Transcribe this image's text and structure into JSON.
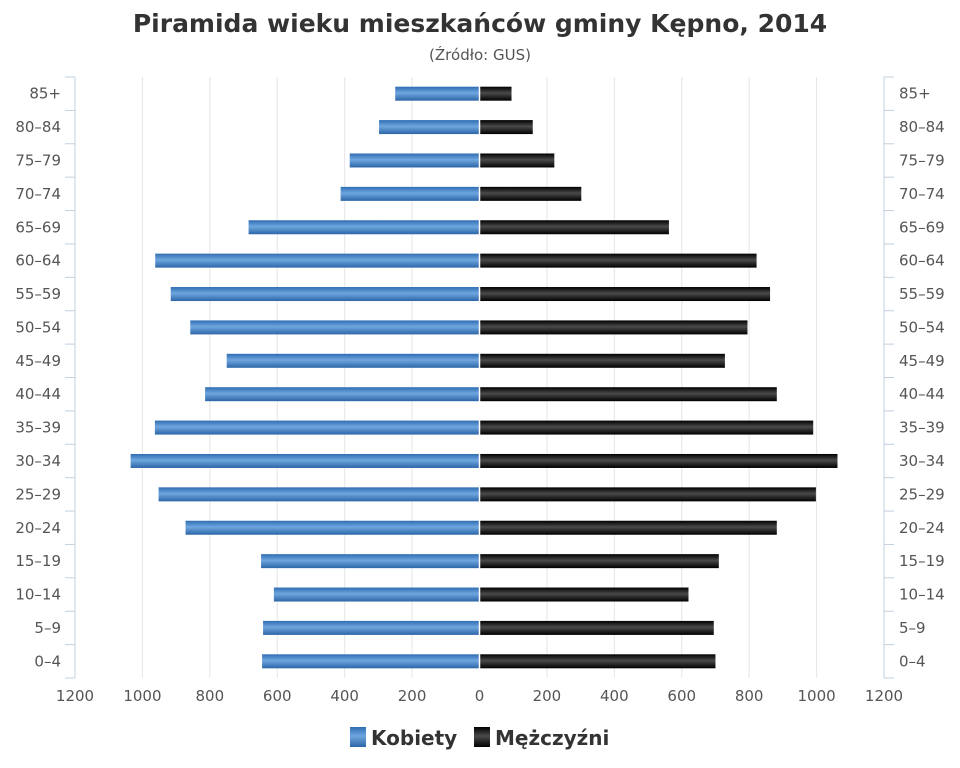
{
  "chart_data": {
    "type": "bar",
    "orientation": "horizontal",
    "layout": "population-pyramid",
    "title": "Piramida wieku mieszkańców gminy Kępno, 2014",
    "subtitle": "(Źródło: GUS)",
    "categories": [
      "85+",
      "80–84",
      "75–79",
      "70–74",
      "65–69",
      "60–64",
      "55–59",
      "50–54",
      "45–49",
      "40–44",
      "35–39",
      "30–34",
      "25–29",
      "20–24",
      "15–19",
      "10–14",
      "5–9",
      "0–4"
    ],
    "series": [
      {
        "name": "Kobiety",
        "side": "left",
        "color": "#4A86C8",
        "values": [
          250,
          298,
          385,
          412,
          685,
          962,
          916,
          858,
          750,
          814,
          963,
          1035,
          952,
          872,
          648,
          610,
          642,
          645
        ]
      },
      {
        "name": "Mężczyźni",
        "side": "right",
        "color": "#1A1A1A",
        "values": [
          95,
          158,
          222,
          302,
          562,
          822,
          862,
          795,
          728,
          882,
          990,
          1062,
          998,
          882,
          710,
          620,
          695,
          700
        ]
      }
    ],
    "xlim": [
      -1200,
      1200
    ],
    "x_ticks": [
      "1200",
      "1000",
      "800",
      "600",
      "400",
      "200",
      "0",
      "200",
      "400",
      "600",
      "800",
      "1000",
      "1200"
    ],
    "grid": true,
    "legend_position": "bottom"
  }
}
